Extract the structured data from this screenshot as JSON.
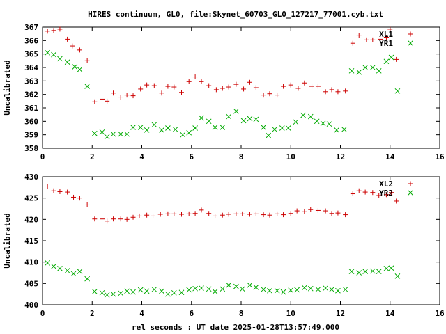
{
  "chart_data": {
    "type": "scatter",
    "title": "HIRES continuum, GL0, file:Skynet_60703_GL0_127217_77001.cyb.txt",
    "xlabel": "rel seconds : UT date 2025-01-28T13:57:49.000",
    "panels": [
      {
        "ylabel": "Uncalibrated",
        "xlim": [
          0,
          16
        ],
        "ylim": [
          358,
          367
        ],
        "xticks": [
          "0",
          "2",
          "4",
          "6",
          "8",
          "10",
          "12",
          "14",
          "16"
        ],
        "yticks": [
          "358",
          "359",
          "360",
          "361",
          "362",
          "363",
          "364",
          "365",
          "366",
          "367"
        ],
        "legend_position": "top-right",
        "series": [
          {
            "name": "XL1",
            "marker": "plus",
            "color": "#cc0000",
            "points": [
              [
                0.2,
                366.7
              ],
              [
                0.45,
                366.75
              ],
              [
                0.7,
                366.85
              ],
              [
                1.0,
                366.1
              ],
              [
                1.2,
                365.6
              ],
              [
                1.5,
                365.3
              ],
              [
                1.8,
                364.5
              ],
              [
                2.1,
                361.45
              ],
              [
                2.4,
                361.65
              ],
              [
                2.6,
                361.5
              ],
              [
                2.85,
                362.1
              ],
              [
                3.15,
                361.8
              ],
              [
                3.4,
                361.95
              ],
              [
                3.65,
                361.9
              ],
              [
                3.95,
                362.4
              ],
              [
                4.2,
                362.7
              ],
              [
                4.5,
                362.65
              ],
              [
                4.8,
                362.1
              ],
              [
                5.05,
                362.6
              ],
              [
                5.3,
                362.55
              ],
              [
                5.6,
                362.15
              ],
              [
                5.9,
                362.95
              ],
              [
                6.15,
                363.3
              ],
              [
                6.4,
                362.95
              ],
              [
                6.7,
                362.65
              ],
              [
                7.0,
                362.35
              ],
              [
                7.25,
                362.45
              ],
              [
                7.5,
                362.55
              ],
              [
                7.8,
                362.75
              ],
              [
                8.1,
                362.4
              ],
              [
                8.35,
                362.9
              ],
              [
                8.6,
                362.5
              ],
              [
                8.9,
                361.95
              ],
              [
                9.15,
                362.05
              ],
              [
                9.45,
                361.95
              ],
              [
                9.7,
                362.6
              ],
              [
                10.0,
                362.7
              ],
              [
                10.3,
                362.45
              ],
              [
                10.55,
                362.85
              ],
              [
                10.85,
                362.6
              ],
              [
                11.1,
                362.6
              ],
              [
                11.4,
                362.2
              ],
              [
                11.65,
                362.35
              ],
              [
                11.9,
                362.2
              ],
              [
                12.2,
                362.25
              ],
              [
                12.5,
                365.8
              ],
              [
                12.75,
                366.4
              ],
              [
                13.05,
                366.05
              ],
              [
                13.3,
                366.05
              ],
              [
                13.6,
                366.1
              ],
              [
                13.85,
                366.25
              ],
              [
                14.0,
                366.85
              ],
              [
                14.25,
                364.6
              ]
            ]
          },
          {
            "name": "YR1",
            "marker": "cross",
            "color": "#00aa00",
            "points": [
              [
                0.2,
                365.1
              ],
              [
                0.45,
                364.95
              ],
              [
                0.7,
                364.65
              ],
              [
                1.0,
                364.4
              ],
              [
                1.3,
                364.05
              ],
              [
                1.5,
                363.85
              ],
              [
                1.8,
                362.6
              ],
              [
                2.1,
                359.1
              ],
              [
                2.4,
                359.2
              ],
              [
                2.6,
                358.85
              ],
              [
                2.85,
                359.05
              ],
              [
                3.15,
                359.05
              ],
              [
                3.4,
                359.05
              ],
              [
                3.65,
                359.55
              ],
              [
                3.95,
                359.55
              ],
              [
                4.2,
                359.35
              ],
              [
                4.5,
                359.75
              ],
              [
                4.8,
                359.35
              ],
              [
                5.05,
                359.5
              ],
              [
                5.35,
                359.4
              ],
              [
                5.65,
                359.0
              ],
              [
                5.9,
                359.15
              ],
              [
                6.15,
                359.5
              ],
              [
                6.4,
                360.25
              ],
              [
                6.7,
                360.0
              ],
              [
                6.95,
                359.55
              ],
              [
                7.25,
                359.55
              ],
              [
                7.5,
                360.35
              ],
              [
                7.8,
                360.75
              ],
              [
                8.1,
                360.05
              ],
              [
                8.35,
                360.2
              ],
              [
                8.6,
                360.15
              ],
              [
                8.9,
                359.55
              ],
              [
                9.1,
                358.95
              ],
              [
                9.35,
                359.4
              ],
              [
                9.65,
                359.5
              ],
              [
                9.9,
                359.5
              ],
              [
                10.2,
                359.95
              ],
              [
                10.5,
                360.45
              ],
              [
                10.8,
                360.35
              ],
              [
                11.05,
                360.0
              ],
              [
                11.3,
                359.85
              ],
              [
                11.55,
                359.8
              ],
              [
                11.85,
                359.35
              ],
              [
                12.15,
                359.4
              ],
              [
                12.45,
                363.75
              ],
              [
                12.75,
                363.65
              ],
              [
                13.0,
                364.0
              ],
              [
                13.3,
                364.0
              ],
              [
                13.55,
                363.75
              ],
              [
                13.85,
                364.45
              ],
              [
                14.05,
                364.75
              ],
              [
                14.3,
                362.25
              ]
            ]
          }
        ]
      },
      {
        "ylabel": "Uncalibrated",
        "xlim": [
          0,
          16
        ],
        "ylim": [
          400,
          430
        ],
        "xticks": [
          "0",
          "2",
          "4",
          "6",
          "8",
          "10",
          "12",
          "14",
          "16"
        ],
        "yticks": [
          "400",
          "405",
          "410",
          "415",
          "420",
          "425",
          "430"
        ],
        "legend_position": "top-right",
        "series": [
          {
            "name": "XL2",
            "marker": "plus",
            "color": "#cc0000",
            "points": [
              [
                0.2,
                427.8
              ],
              [
                0.45,
                426.7
              ],
              [
                0.7,
                426.5
              ],
              [
                1.0,
                426.4
              ],
              [
                1.25,
                425.2
              ],
              [
                1.5,
                425.0
              ],
              [
                1.8,
                423.4
              ],
              [
                2.1,
                420.1
              ],
              [
                2.4,
                420.1
              ],
              [
                2.6,
                419.6
              ],
              [
                2.85,
                420.1
              ],
              [
                3.15,
                420.1
              ],
              [
                3.4,
                420.0
              ],
              [
                3.65,
                420.5
              ],
              [
                3.9,
                420.8
              ],
              [
                4.2,
                421.0
              ],
              [
                4.45,
                420.8
              ],
              [
                4.75,
                421.2
              ],
              [
                5.05,
                421.3
              ],
              [
                5.3,
                421.3
              ],
              [
                5.6,
                421.2
              ],
              [
                5.9,
                421.3
              ],
              [
                6.15,
                421.4
              ],
              [
                6.4,
                422.2
              ],
              [
                6.7,
                421.4
              ],
              [
                6.95,
                420.8
              ],
              [
                7.25,
                421.0
              ],
              [
                7.5,
                421.2
              ],
              [
                7.8,
                421.3
              ],
              [
                8.05,
                421.3
              ],
              [
                8.35,
                421.2
              ],
              [
                8.6,
                421.3
              ],
              [
                8.9,
                421.1
              ],
              [
                9.15,
                421.0
              ],
              [
                9.45,
                421.3
              ],
              [
                9.7,
                421.1
              ],
              [
                10.0,
                421.4
              ],
              [
                10.25,
                422.0
              ],
              [
                10.55,
                421.8
              ],
              [
                10.8,
                422.3
              ],
              [
                11.1,
                422.1
              ],
              [
                11.4,
                422.0
              ],
              [
                11.65,
                421.4
              ],
              [
                11.9,
                421.5
              ],
              [
                12.2,
                421.1
              ],
              [
                12.5,
                426.0
              ],
              [
                12.75,
                426.7
              ],
              [
                13.0,
                426.4
              ],
              [
                13.3,
                426.3
              ],
              [
                13.55,
                425.6
              ],
              [
                13.85,
                425.8
              ],
              [
                14.05,
                426.3
              ],
              [
                14.25,
                424.3
              ]
            ]
          },
          {
            "name": "YR2",
            "marker": "cross",
            "color": "#00aa00",
            "points": [
              [
                0.2,
                409.8
              ],
              [
                0.45,
                409.0
              ],
              [
                0.7,
                408.5
              ],
              [
                1.0,
                408.0
              ],
              [
                1.25,
                407.3
              ],
              [
                1.5,
                407.8
              ],
              [
                1.8,
                406.1
              ],
              [
                2.1,
                403.1
              ],
              [
                2.4,
                402.8
              ],
              [
                2.6,
                402.3
              ],
              [
                2.85,
                402.5
              ],
              [
                3.15,
                402.7
              ],
              [
                3.4,
                403.2
              ],
              [
                3.65,
                403.0
              ],
              [
                3.95,
                403.5
              ],
              [
                4.2,
                403.2
              ],
              [
                4.5,
                403.6
              ],
              [
                4.8,
                403.2
              ],
              [
                5.05,
                402.5
              ],
              [
                5.3,
                402.8
              ],
              [
                5.6,
                402.9
              ],
              [
                5.9,
                403.5
              ],
              [
                6.15,
                403.8
              ],
              [
                6.4,
                403.9
              ],
              [
                6.7,
                403.7
              ],
              [
                6.95,
                403.1
              ],
              [
                7.25,
                403.7
              ],
              [
                7.5,
                404.6
              ],
              [
                7.8,
                404.3
              ],
              [
                8.05,
                403.7
              ],
              [
                8.35,
                404.6
              ],
              [
                8.6,
                404.1
              ],
              [
                8.9,
                403.6
              ],
              [
                9.15,
                403.3
              ],
              [
                9.45,
                403.3
              ],
              [
                9.7,
                403.0
              ],
              [
                10.0,
                403.4
              ],
              [
                10.25,
                403.5
              ],
              [
                10.55,
                404.0
              ],
              [
                10.8,
                403.8
              ],
              [
                11.1,
                403.6
              ],
              [
                11.4,
                403.9
              ],
              [
                11.65,
                403.6
              ],
              [
                11.9,
                403.3
              ],
              [
                12.2,
                403.6
              ],
              [
                12.45,
                407.8
              ],
              [
                12.75,
                407.5
              ],
              [
                13.0,
                407.8
              ],
              [
                13.3,
                407.9
              ],
              [
                13.55,
                407.8
              ],
              [
                13.85,
                408.5
              ],
              [
                14.05,
                408.6
              ],
              [
                14.3,
                406.7
              ]
            ]
          }
        ]
      }
    ]
  }
}
